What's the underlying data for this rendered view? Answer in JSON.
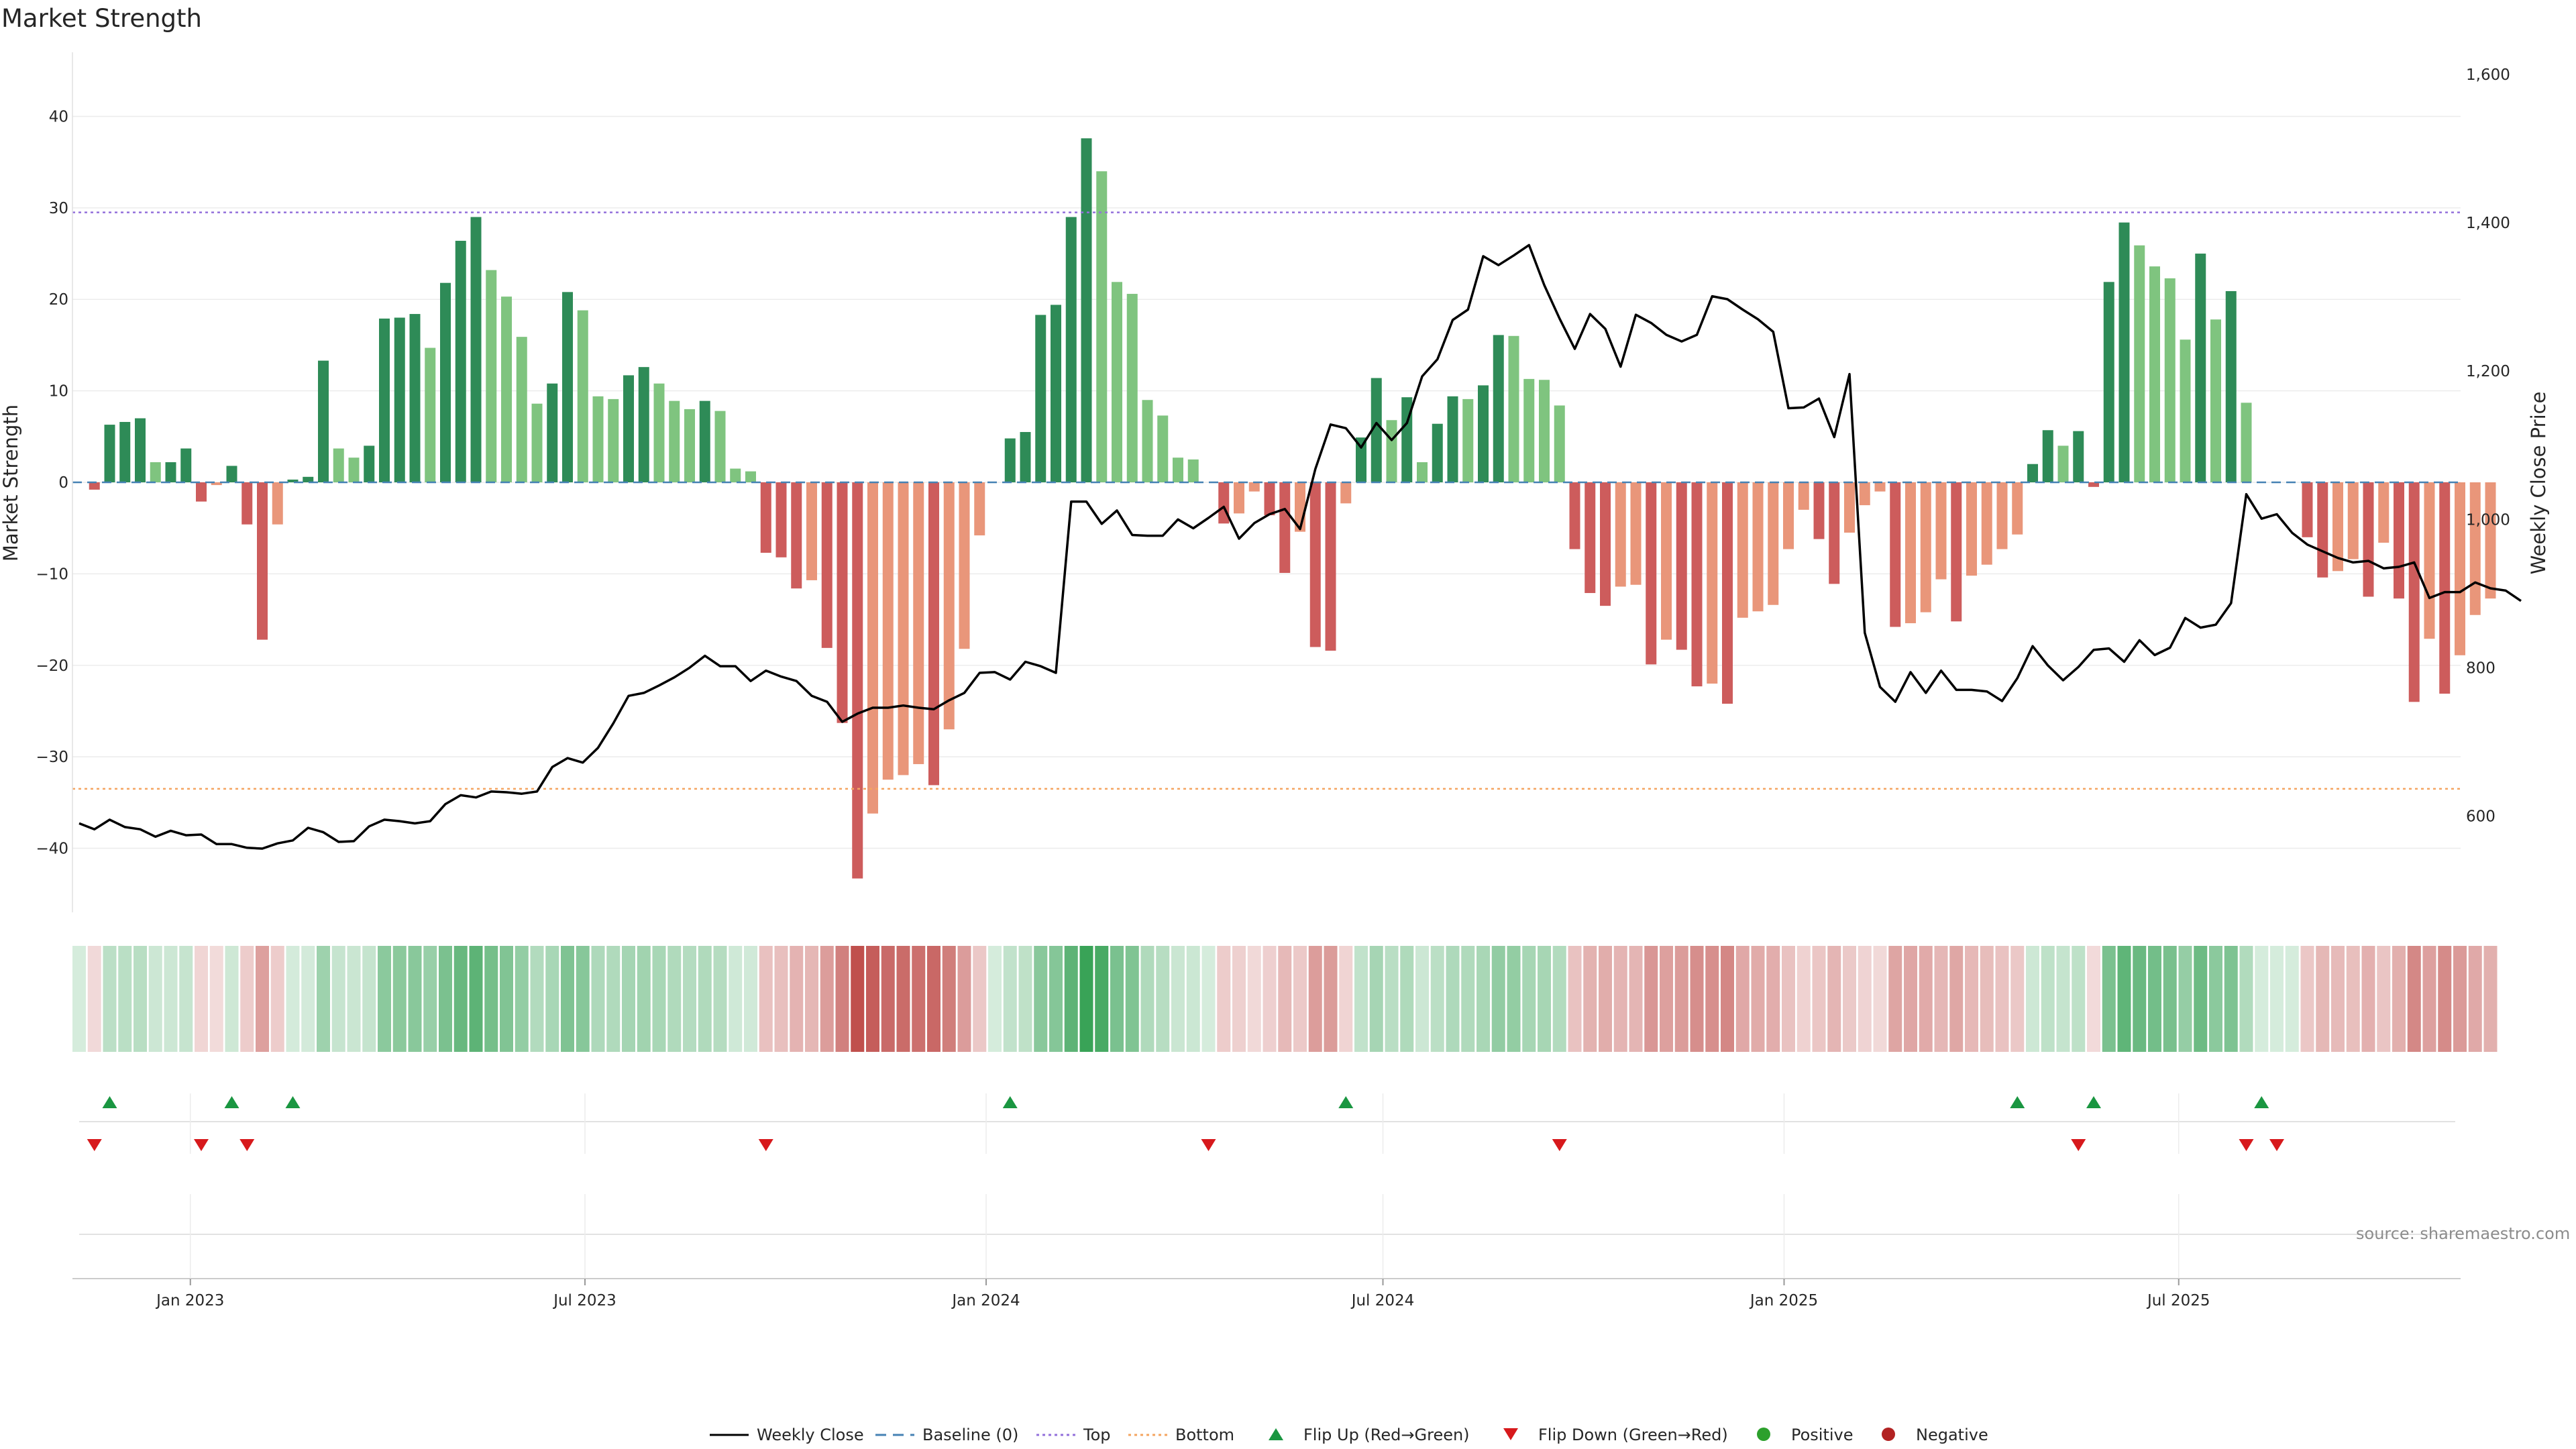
{
  "title": "Market Strength",
  "source": "source: sharemaestro.com",
  "colors": {
    "pos_dark": "#2e8b57",
    "pos_light": "#7fc47f",
    "neg_dark": "#cd5c5c",
    "neg_light": "#e9967a",
    "price_line": "#000000",
    "baseline": "#4682b4",
    "top_line": "#9370db",
    "bottom_line": "#f4a460",
    "flip_up": "#1a9641",
    "flip_down": "#d7191c",
    "positive_dot": "#2ca02c",
    "negative_dot": "#b22222"
  },
  "chart_data": {
    "type": "bar",
    "x_start": "2022-11-11",
    "x_step_days": 7,
    "x_ticks": [
      "Jan 2023",
      "Jul 2023",
      "Jan 2024",
      "Jul 2024",
      "Jan 2025",
      "Jul 2025"
    ],
    "y_left": {
      "label": "Market Strength",
      "lim": [
        -47,
        47
      ],
      "ticks": [
        -40,
        -30,
        -20,
        -10,
        0,
        10,
        20,
        30,
        40
      ]
    },
    "y_right": {
      "label": "Weekly Close Price",
      "lim": [
        470,
        1630
      ],
      "ticks": [
        "600",
        "800",
        "1,000",
        "1,200",
        "1,400",
        "1,600"
      ]
    },
    "top_threshold": 29.5,
    "bottom_threshold": -33.5,
    "series": [
      {
        "name": "Market Strength",
        "values": [
          0,
          -0.8,
          6.3,
          6.6,
          7.0,
          2.2,
          2.2,
          3.7,
          -2.1,
          -0.3,
          1.8,
          -4.6,
          -17.2,
          -4.6,
          0.3,
          0.6,
          13.3,
          3.7,
          2.7,
          4.0,
          17.9,
          18.0,
          18.4,
          14.7,
          21.8,
          26.4,
          29.0,
          23.2,
          20.3,
          15.9,
          8.6,
          10.8,
          20.8,
          18.8,
          9.4,
          9.1,
          11.7,
          12.6,
          10.8,
          8.9,
          8.0,
          8.9,
          7.8,
          1.5,
          1.2,
          -7.7,
          -8.2,
          -11.6,
          -10.7,
          -18.1,
          -26.3,
          -43.3,
          -36.2,
          -32.5,
          -32.0,
          -30.8,
          -33.1,
          -27.0,
          -18.2,
          -5.8,
          0,
          4.8,
          5.5,
          18.3,
          19.4,
          29.0,
          37.6,
          34.0,
          21.9,
          20.6,
          9.0,
          7.3,
          2.7,
          2.5,
          0,
          -4.5,
          -3.4,
          -1.0,
          -3.6,
          -9.9,
          -5.4,
          -18.0,
          -18.4,
          -2.3,
          4.9,
          11.4,
          6.8,
          9.3,
          2.2,
          6.4,
          9.4,
          9.1,
          10.6,
          16.1,
          16.0,
          11.3,
          11.2,
          8.4,
          -7.3,
          -12.1,
          -13.5,
          -11.4,
          -11.2,
          -19.9,
          -17.2,
          -18.3,
          -22.3,
          -22.0,
          -24.2,
          -14.8,
          -14.1,
          -13.4,
          -7.3,
          -3.0,
          -6.2,
          -11.1,
          -5.5,
          -2.5,
          -1.0,
          -15.8,
          -15.4,
          -14.2,
          -10.6,
          -15.2,
          -10.2,
          -9.0,
          -7.3,
          -5.7,
          2.0,
          5.7,
          4.0,
          5.6,
          -0.5,
          21.9,
          28.4,
          25.9,
          23.6,
          22.3,
          15.6,
          25.0,
          17.8,
          20.9,
          8.7,
          0,
          0,
          0,
          -6.0,
          -10.4,
          -9.7,
          -8.4,
          -12.5,
          -6.6,
          -12.7,
          -24.0,
          -17.1,
          -23.1,
          -18.9,
          -14.5,
          -12.7
        ]
      },
      {
        "name": "Weekly Close",
        "values": [
          590,
          582,
          595,
          585,
          582,
          572,
          580,
          574,
          575,
          562,
          562,
          557,
          556,
          563,
          567,
          584,
          578,
          565,
          566,
          586,
          595,
          593,
          590,
          593,
          616,
          628,
          625,
          633,
          632,
          630,
          633,
          666,
          678,
          672,
          692,
          725,
          762,
          766,
          776,
          787,
          800,
          816,
          802,
          802,
          782,
          796,
          788,
          782,
          762,
          754,
          727,
          738,
          746,
          746,
          749,
          746,
          744,
          756,
          766,
          793,
          794,
          784,
          808,
          802,
          793,
          1024,
          1024,
          994,
          1012,
          979,
          978,
          978,
          1000,
          988,
          1002,
          1017,
          974,
          995,
          1007,
          1014,
          987,
          1068,
          1128,
          1123,
          1097,
          1130,
          1107,
          1130,
          1193,
          1216,
          1269,
          1283,
          1355,
          1343,
          1356,
          1370,
          1316,
          1271,
          1230,
          1277,
          1257,
          1206,
          1276,
          1265,
          1249,
          1240,
          1249,
          1301,
          1297,
          1283,
          1270,
          1253,
          1150,
          1151,
          1163,
          1111,
          1196,
          847,
          774,
          754,
          794,
          766,
          796,
          770,
          770,
          768,
          755,
          786,
          829,
          803,
          783,
          801,
          824,
          826,
          808,
          837,
          817,
          827,
          867,
          854,
          858,
          887,
          1034,
          1001,
          1007,
          982,
          966,
          957,
          948,
          942,
          944,
          934,
          936,
          942,
          894,
          902,
          902,
          915,
          907,
          904,
          890
        ]
      }
    ],
    "heatmap_strip": "Market Strength",
    "flip_up_weeks": [
      2,
      10,
      14,
      61,
      83,
      127,
      132,
      143
    ],
    "flip_down_weeks": [
      1,
      8,
      11,
      45,
      74,
      97,
      131,
      142,
      144
    ],
    "legend": {
      "position": "bottom-center",
      "entries": [
        {
          "label": "Weekly Close",
          "kind": "line"
        },
        {
          "label": "Baseline (0)",
          "kind": "dashed"
        },
        {
          "label": "Top",
          "kind": "dotted"
        },
        {
          "label": "Bottom",
          "kind": "dotted"
        },
        {
          "label": "Flip Up (Red→Green)",
          "kind": "up"
        },
        {
          "label": "Flip Down (Green→Red)",
          "kind": "down"
        },
        {
          "label": "Positive",
          "kind": "dot-pos"
        },
        {
          "label": "Negative",
          "kind": "dot-neg"
        }
      ]
    }
  }
}
